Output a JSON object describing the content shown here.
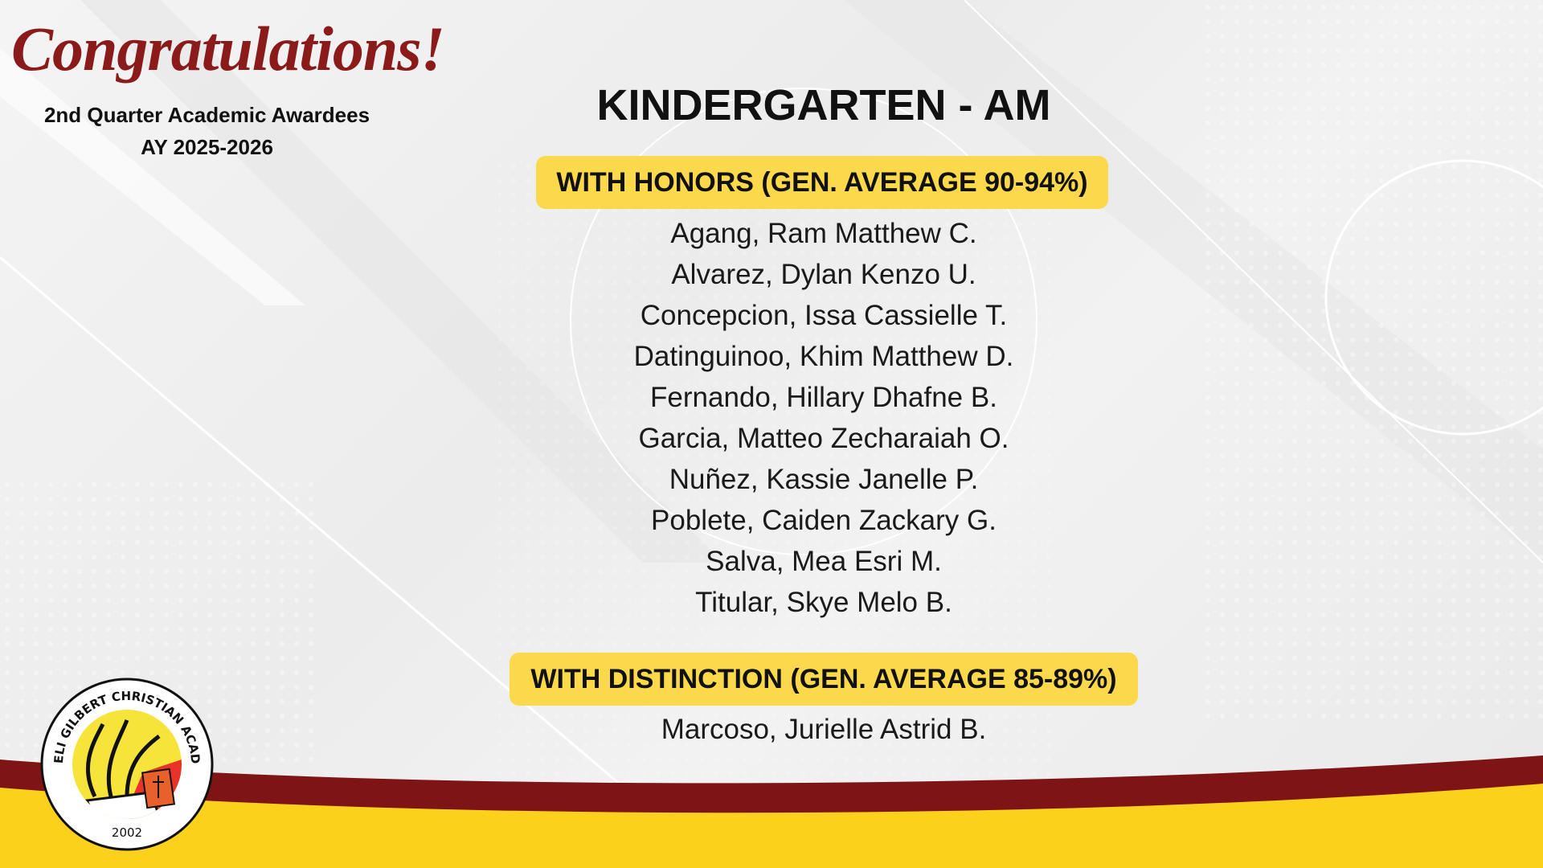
{
  "header": {
    "greeting": "Congratulations!",
    "subtitle": "2nd Quarter Academic Awardees",
    "academic_year": "AY 2025-2026"
  },
  "title": "KINDERGARTEN - AM",
  "sections": [
    {
      "label": "WITH HONORS (GEN. AVERAGE 90-94%)",
      "names": [
        "Agang, Ram Matthew C.",
        "Alvarez, Dylan Kenzo U.",
        "Concepcion, Issa Cassielle T.",
        "Datinguinoo, Khim Matthew D.",
        "Fernando, Hillary Dhafne B.",
        "Garcia, Matteo Zecharaiah O.",
        "Nuñez, Kassie Janelle P.",
        "Poblete, Caiden Zackary G.",
        "Salva, Mea Esri M.",
        "Titular, Skye Melo B."
      ]
    },
    {
      "label": "WITH DISTINCTION (GEN. AVERAGE 85-89%)",
      "names": [
        "Marcoso, Jurielle Astrid B."
      ]
    }
  ],
  "logo": {
    "name": "ANGELI GILBERT CHRISTIAN ACADEMY",
    "year": "2002"
  },
  "colors": {
    "maroon": "#8b1a1a",
    "yellow": "#fcd94a",
    "band_yellow": "#fbd11c"
  }
}
